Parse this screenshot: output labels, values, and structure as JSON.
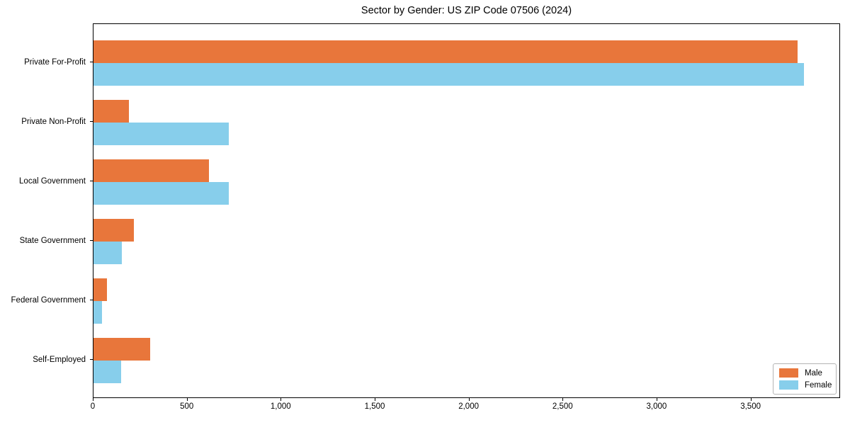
{
  "chart_data": {
    "type": "bar",
    "orientation": "horizontal",
    "title": "Sector by Gender: US ZIP Code 07506 (2024)",
    "categories": [
      "Private For-Profit",
      "Private Non-Profit",
      "Local Government",
      "State Government",
      "Federal Government",
      "Self-Employed"
    ],
    "series": [
      {
        "name": "Male",
        "color": "#e8763b",
        "values": [
          3745,
          190,
          615,
          215,
          70,
          300
        ]
      },
      {
        "name": "Female",
        "color": "#87ceeb",
        "values": [
          3780,
          720,
          720,
          150,
          45,
          145
        ]
      }
    ],
    "xlabel": "",
    "ylabel": "",
    "xlim": [
      0,
      3969
    ],
    "xticks": [
      0,
      500,
      1000,
      1500,
      2000,
      2500,
      3000,
      3500
    ],
    "xtick_labels": [
      "0",
      "500",
      "1,000",
      "1,500",
      "2,000",
      "2,500",
      "3,000",
      "3,500"
    ],
    "grid": false,
    "legend": {
      "position": "lower right",
      "entries": [
        "Male",
        "Female"
      ]
    },
    "colors": {
      "axis": "#000000",
      "background": "#ffffff",
      "legend_border": "#b4b4b4"
    }
  }
}
